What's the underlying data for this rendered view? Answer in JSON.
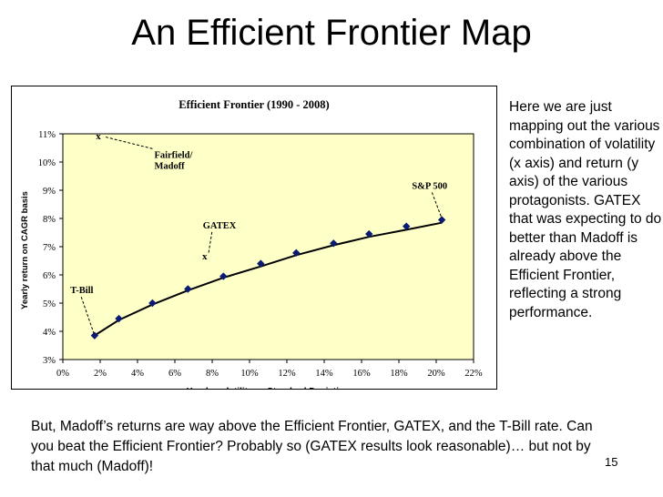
{
  "slide": {
    "title": "An Efficient Frontier Map",
    "side_text": "Here we are just mapping out the various combination of volatility (x axis) and return (y axis) of the various protagonists. GATEX that was expecting to do better than Madoff is already above the Efficient Frontier, reflecting a strong performance.",
    "bottom_text": "But, Madoff’s returns are way above the Efficient Frontier, GATEX, and the T-Bill rate.  Can you beat the Efficient Frontier?  Probably so (GATEX results look reasonable)… but not by that much (Madoff)!",
    "page_number": "15"
  },
  "chart_data": {
    "type": "scatter",
    "title": "Efficient Frontier (1990 - 2008)",
    "xlabel": "Yearly volatility or Standard Deviation",
    "ylabel": "Yearly return on CAGR basis",
    "xlim": [
      0,
      22
    ],
    "ylim": [
      3,
      11
    ],
    "x_ticks": [
      "0%",
      "2%",
      "4%",
      "6%",
      "8%",
      "10%",
      "12%",
      "14%",
      "16%",
      "18%",
      "20%",
      "22%"
    ],
    "y_ticks": [
      "3%",
      "4%",
      "5%",
      "6%",
      "7%",
      "8%",
      "9%",
      "10%",
      "11%"
    ],
    "grid": false,
    "series": [
      {
        "x": [
          1.7,
          3.0,
          4.8,
          6.7,
          8.6,
          10.6,
          12.5,
          14.5,
          16.4,
          18.4,
          20.3
        ],
        "y": [
          3.85,
          4.45,
          5.0,
          5.5,
          5.95,
          6.4,
          6.78,
          7.12,
          7.45,
          7.72,
          7.95
        ]
      }
    ],
    "curve": {
      "x": [
        1.7,
        3,
        4.8,
        6.7,
        8.6,
        10.6,
        12.5,
        14.5,
        16.4,
        18.4,
        20.3
      ],
      "y": [
        3.85,
        4.4,
        4.95,
        5.45,
        5.9,
        6.3,
        6.7,
        7.05,
        7.35,
        7.6,
        7.85
      ]
    },
    "x_markers": [
      {
        "label": "x",
        "x": 1.9,
        "y": 10.8
      },
      {
        "label": "x",
        "x": 7.6,
        "y": 6.55
      }
    ],
    "annotations": [
      {
        "label": "T-Bill",
        "text_at": [
          0.4,
          5.35
        ],
        "point": [
          1.7,
          3.85
        ]
      },
      {
        "label": "Fairfield/\nMadoff",
        "text_at": [
          4.9,
          10.15
        ],
        "point": [
          2.2,
          10.9
        ]
      },
      {
        "label": "GATEX",
        "text_at": [
          7.5,
          7.65
        ],
        "point": [
          7.8,
          6.75
        ]
      },
      {
        "label": "S&P 500",
        "text_at": [
          18.7,
          9.05
        ],
        "point": [
          20.3,
          8.0
        ]
      }
    ],
    "marker_color": "#0b1a72",
    "line_color": "#000000"
  }
}
